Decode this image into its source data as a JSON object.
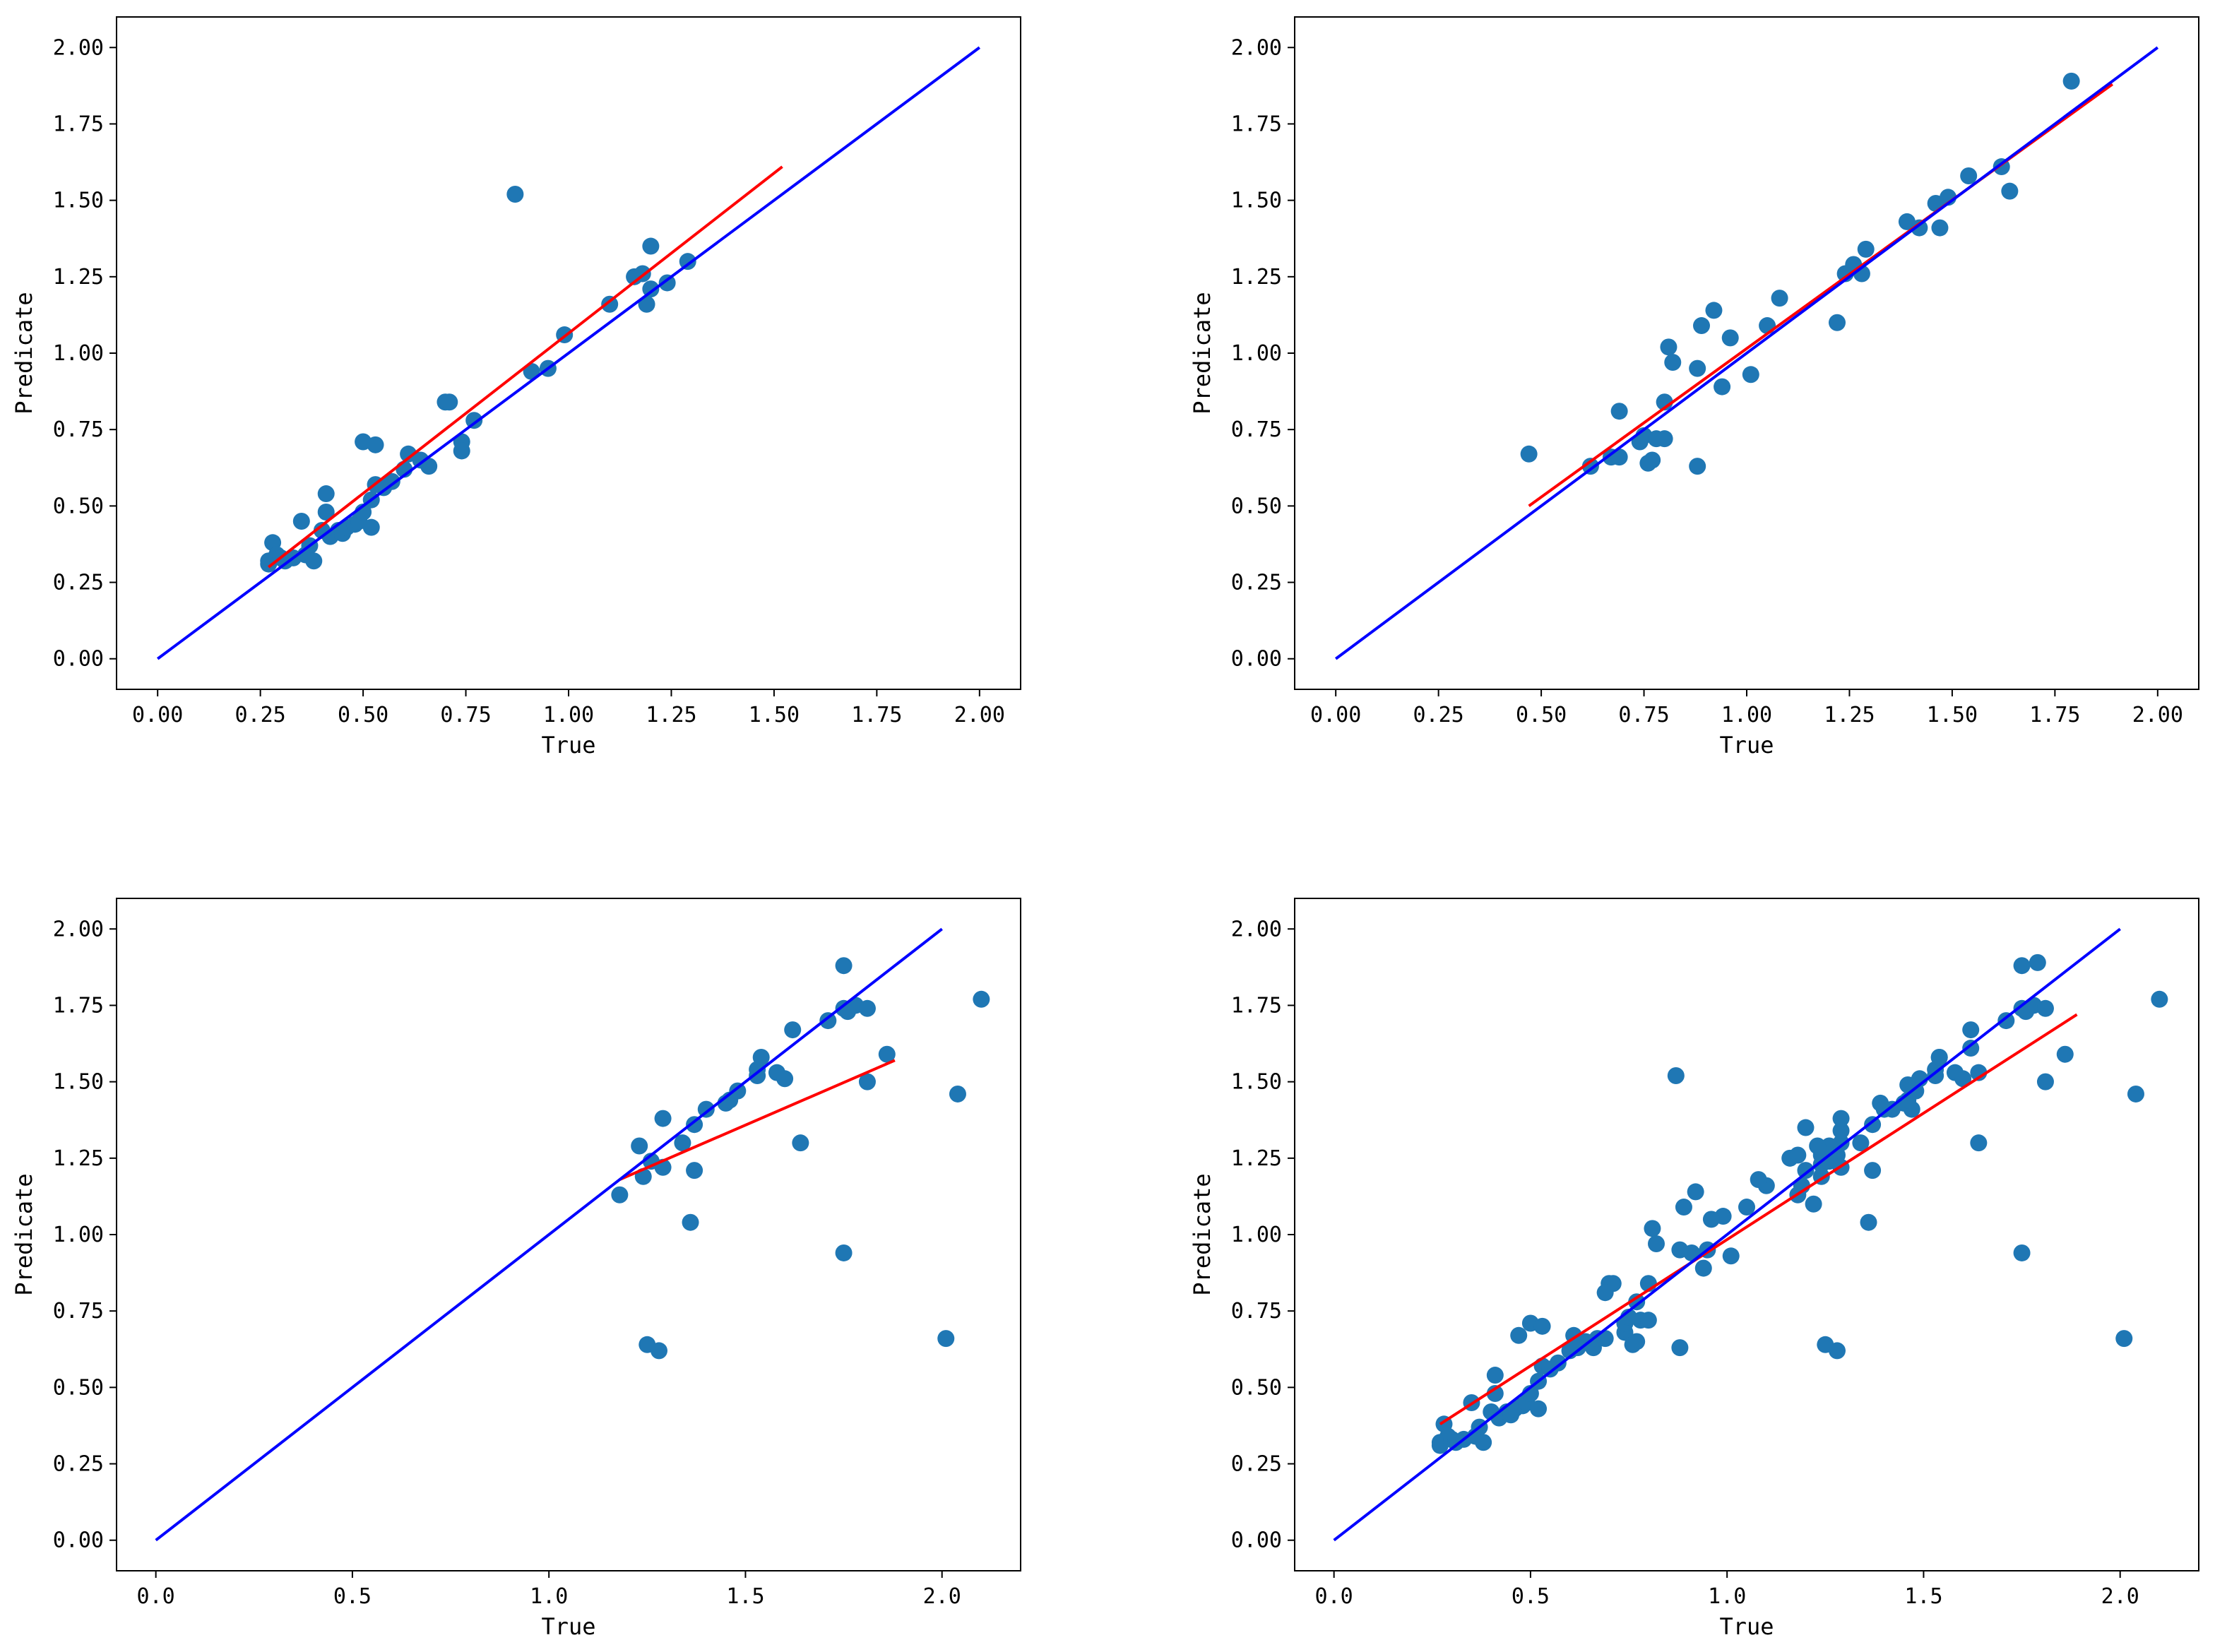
{
  "colors": {
    "points": "#1f77b4",
    "fit_line": "#ff0000",
    "identity_line": "#0000ff",
    "axes": "#000000"
  },
  "chart_data": [
    {
      "type": "scatter",
      "title": "",
      "xlabel": "True",
      "ylabel": "Predicate",
      "xlim": [
        -0.1,
        2.1
      ],
      "ylim": [
        -0.1,
        2.1
      ],
      "xticks": [
        "0.00",
        "0.25",
        "0.50",
        "0.75",
        "1.00",
        "1.25",
        "1.50",
        "1.75",
        "2.00"
      ],
      "yticks": [
        "0.00",
        "0.25",
        "0.50",
        "0.75",
        "1.00",
        "1.25",
        "1.50",
        "1.75",
        "2.00"
      ],
      "identity_line": {
        "x": [
          0,
          2
        ],
        "y": [
          0,
          2
        ]
      },
      "fit_line": {
        "x": [
          0.27,
          1.52
        ],
        "y": [
          0.3,
          1.61
        ]
      },
      "points": [
        [
          0.27,
          0.32
        ],
        [
          0.27,
          0.31
        ],
        [
          0.28,
          0.38
        ],
        [
          0.29,
          0.34
        ],
        [
          0.3,
          0.33
        ],
        [
          0.31,
          0.32
        ],
        [
          0.33,
          0.33
        ],
        [
          0.35,
          0.45
        ],
        [
          0.36,
          0.34
        ],
        [
          0.37,
          0.37
        ],
        [
          0.38,
          0.32
        ],
        [
          0.4,
          0.42
        ],
        [
          0.41,
          0.54
        ],
        [
          0.41,
          0.48
        ],
        [
          0.42,
          0.4
        ],
        [
          0.44,
          0.42
        ],
        [
          0.45,
          0.41
        ],
        [
          0.46,
          0.43
        ],
        [
          0.48,
          0.44
        ],
        [
          0.49,
          0.45
        ],
        [
          0.5,
          0.48
        ],
        [
          0.5,
          0.71
        ],
        [
          0.52,
          0.52
        ],
        [
          0.52,
          0.43
        ],
        [
          0.53,
          0.57
        ],
        [
          0.53,
          0.7
        ],
        [
          0.55,
          0.56
        ],
        [
          0.57,
          0.58
        ],
        [
          0.6,
          0.62
        ],
        [
          0.61,
          0.67
        ],
        [
          0.64,
          0.65
        ],
        [
          0.66,
          0.63
        ],
        [
          0.7,
          0.84
        ],
        [
          0.71,
          0.84
        ],
        [
          0.74,
          0.71
        ],
        [
          0.74,
          0.68
        ],
        [
          0.77,
          0.78
        ],
        [
          0.87,
          1.52
        ],
        [
          0.91,
          0.94
        ],
        [
          0.95,
          0.95
        ],
        [
          0.99,
          1.06
        ],
        [
          1.1,
          1.16
        ],
        [
          1.16,
          1.25
        ],
        [
          1.18,
          1.26
        ],
        [
          1.19,
          1.16
        ],
        [
          1.2,
          1.21
        ],
        [
          1.2,
          1.35
        ],
        [
          1.24,
          1.23
        ],
        [
          1.29,
          1.3
        ]
      ]
    },
    {
      "type": "scatter",
      "title": "",
      "xlabel": "True",
      "ylabel": "Predicate",
      "xlim": [
        -0.1,
        2.1
      ],
      "ylim": [
        -0.1,
        2.1
      ],
      "xticks": [
        "0.00",
        "0.25",
        "0.50",
        "0.75",
        "1.00",
        "1.25",
        "1.50",
        "1.75",
        "2.00"
      ],
      "yticks": [
        "0.00",
        "0.25",
        "0.50",
        "0.75",
        "1.00",
        "1.25",
        "1.50",
        "1.75",
        "2.00"
      ],
      "identity_line": {
        "x": [
          0,
          2
        ],
        "y": [
          0,
          2
        ]
      },
      "fit_line": {
        "x": [
          0.47,
          1.89
        ],
        "y": [
          0.5,
          1.88
        ]
      },
      "points": [
        [
          0.47,
          0.67
        ],
        [
          0.62,
          0.63
        ],
        [
          0.67,
          0.66
        ],
        [
          0.69,
          0.66
        ],
        [
          0.69,
          0.81
        ],
        [
          0.74,
          0.71
        ],
        [
          0.75,
          0.73
        ],
        [
          0.76,
          0.64
        ],
        [
          0.77,
          0.65
        ],
        [
          0.78,
          0.72
        ],
        [
          0.8,
          0.72
        ],
        [
          0.8,
          0.84
        ],
        [
          0.81,
          1.02
        ],
        [
          0.82,
          0.97
        ],
        [
          0.88,
          0.63
        ],
        [
          0.88,
          0.95
        ],
        [
          0.89,
          1.09
        ],
        [
          0.92,
          1.14
        ],
        [
          0.94,
          0.89
        ],
        [
          0.96,
          1.05
        ],
        [
          1.01,
          0.93
        ],
        [
          1.05,
          1.09
        ],
        [
          1.08,
          1.18
        ],
        [
          1.22,
          1.1
        ],
        [
          1.24,
          1.26
        ],
        [
          1.26,
          1.29
        ],
        [
          1.28,
          1.26
        ],
        [
          1.29,
          1.34
        ],
        [
          1.39,
          1.43
        ],
        [
          1.42,
          1.41
        ],
        [
          1.46,
          1.49
        ],
        [
          1.47,
          1.41
        ],
        [
          1.49,
          1.51
        ],
        [
          1.54,
          1.58
        ],
        [
          1.62,
          1.61
        ],
        [
          1.64,
          1.53
        ],
        [
          1.79,
          1.89
        ]
      ]
    },
    {
      "type": "scatter",
      "title": "",
      "xlabel": "True",
      "ylabel": "Predicate",
      "xlim": [
        -0.1,
        2.2
      ],
      "ylim": [
        -0.1,
        2.1
      ],
      "xticks": [
        "0.0",
        "0.5",
        "1.0",
        "1.5",
        "2.0"
      ],
      "yticks": [
        "0.00",
        "0.25",
        "0.50",
        "0.75",
        "1.00",
        "1.25",
        "1.50",
        "1.75",
        "2.00"
      ],
      "identity_line": {
        "x": [
          0,
          2
        ],
        "y": [
          0,
          2
        ]
      },
      "fit_line": {
        "x": [
          1.18,
          1.88
        ],
        "y": [
          1.18,
          1.57
        ]
      },
      "points": [
        [
          1.18,
          1.13
        ],
        [
          1.23,
          1.29
        ],
        [
          1.24,
          1.19
        ],
        [
          1.25,
          0.64
        ],
        [
          1.26,
          1.24
        ],
        [
          1.28,
          0.62
        ],
        [
          1.29,
          1.22
        ],
        [
          1.29,
          1.38
        ],
        [
          1.34,
          1.3
        ],
        [
          1.36,
          1.04
        ],
        [
          1.37,
          1.21
        ],
        [
          1.37,
          1.36
        ],
        [
          1.4,
          1.41
        ],
        [
          1.45,
          1.43
        ],
        [
          1.46,
          1.44
        ],
        [
          1.48,
          1.47
        ],
        [
          1.53,
          1.52
        ],
        [
          1.53,
          1.54
        ],
        [
          1.54,
          1.58
        ],
        [
          1.58,
          1.53
        ],
        [
          1.6,
          1.51
        ],
        [
          1.62,
          1.67
        ],
        [
          1.64,
          1.3
        ],
        [
          1.71,
          1.7
        ],
        [
          1.75,
          0.94
        ],
        [
          1.75,
          1.74
        ],
        [
          1.75,
          1.88
        ],
        [
          1.76,
          1.73
        ],
        [
          1.78,
          1.75
        ],
        [
          1.81,
          1.74
        ],
        [
          1.81,
          1.5
        ],
        [
          1.86,
          1.59
        ],
        [
          2.01,
          0.66
        ],
        [
          2.04,
          1.46
        ],
        [
          2.1,
          1.77
        ]
      ]
    },
    {
      "type": "scatter",
      "title": "",
      "xlabel": "True",
      "ylabel": "Predicate",
      "xlim": [
        -0.1,
        2.2
      ],
      "ylim": [
        -0.1,
        2.1
      ],
      "xticks": [
        "0.0",
        "0.5",
        "1.0",
        "1.5",
        "2.0"
      ],
      "yticks": [
        "0.00",
        "0.25",
        "0.50",
        "0.75",
        "1.00",
        "1.25",
        "1.50",
        "1.75",
        "2.00"
      ],
      "identity_line": {
        "x": [
          0,
          2
        ],
        "y": [
          0,
          2
        ]
      },
      "fit_line": {
        "x": [
          0.27,
          1.89
        ],
        "y": [
          0.38,
          1.72
        ]
      },
      "points": [
        [
          0.27,
          0.32
        ],
        [
          0.27,
          0.31
        ],
        [
          0.28,
          0.38
        ],
        [
          0.29,
          0.34
        ],
        [
          0.3,
          0.33
        ],
        [
          0.31,
          0.32
        ],
        [
          0.33,
          0.33
        ],
        [
          0.35,
          0.45
        ],
        [
          0.36,
          0.34
        ],
        [
          0.37,
          0.37
        ],
        [
          0.38,
          0.32
        ],
        [
          0.4,
          0.42
        ],
        [
          0.41,
          0.54
        ],
        [
          0.41,
          0.48
        ],
        [
          0.42,
          0.4
        ],
        [
          0.44,
          0.42
        ],
        [
          0.45,
          0.41
        ],
        [
          0.46,
          0.43
        ],
        [
          0.48,
          0.44
        ],
        [
          0.49,
          0.45
        ],
        [
          0.5,
          0.48
        ],
        [
          0.5,
          0.71
        ],
        [
          0.52,
          0.52
        ],
        [
          0.52,
          0.43
        ],
        [
          0.53,
          0.57
        ],
        [
          0.53,
          0.7
        ],
        [
          0.55,
          0.56
        ],
        [
          0.57,
          0.58
        ],
        [
          0.6,
          0.62
        ],
        [
          0.61,
          0.67
        ],
        [
          0.64,
          0.65
        ],
        [
          0.66,
          0.63
        ],
        [
          0.7,
          0.84
        ],
        [
          0.71,
          0.84
        ],
        [
          0.74,
          0.71
        ],
        [
          0.74,
          0.68
        ],
        [
          0.77,
          0.78
        ],
        [
          0.87,
          1.52
        ],
        [
          0.91,
          0.94
        ],
        [
          0.95,
          0.95
        ],
        [
          0.99,
          1.06
        ],
        [
          1.1,
          1.16
        ],
        [
          1.16,
          1.25
        ],
        [
          1.18,
          1.26
        ],
        [
          1.19,
          1.16
        ],
        [
          1.2,
          1.21
        ],
        [
          1.2,
          1.35
        ],
        [
          1.24,
          1.23
        ],
        [
          1.29,
          1.3
        ],
        [
          0.47,
          0.67
        ],
        [
          0.62,
          0.63
        ],
        [
          0.67,
          0.66
        ],
        [
          0.69,
          0.66
        ],
        [
          0.69,
          0.81
        ],
        [
          0.74,
          0.71
        ],
        [
          0.75,
          0.73
        ],
        [
          0.76,
          0.64
        ],
        [
          0.77,
          0.65
        ],
        [
          0.78,
          0.72
        ],
        [
          0.8,
          0.72
        ],
        [
          0.8,
          0.84
        ],
        [
          0.81,
          1.02
        ],
        [
          0.82,
          0.97
        ],
        [
          0.88,
          0.63
        ],
        [
          0.88,
          0.95
        ],
        [
          0.89,
          1.09
        ],
        [
          0.92,
          1.14
        ],
        [
          0.94,
          0.89
        ],
        [
          0.96,
          1.05
        ],
        [
          1.01,
          0.93
        ],
        [
          1.05,
          1.09
        ],
        [
          1.08,
          1.18
        ],
        [
          1.22,
          1.1
        ],
        [
          1.24,
          1.26
        ],
        [
          1.26,
          1.29
        ],
        [
          1.28,
          1.26
        ],
        [
          1.29,
          1.34
        ],
        [
          1.39,
          1.43
        ],
        [
          1.42,
          1.41
        ],
        [
          1.46,
          1.49
        ],
        [
          1.47,
          1.41
        ],
        [
          1.49,
          1.51
        ],
        [
          1.54,
          1.58
        ],
        [
          1.62,
          1.61
        ],
        [
          1.64,
          1.53
        ],
        [
          1.79,
          1.89
        ],
        [
          1.18,
          1.13
        ],
        [
          1.23,
          1.29
        ],
        [
          1.24,
          1.19
        ],
        [
          1.25,
          0.64
        ],
        [
          1.26,
          1.24
        ],
        [
          1.28,
          0.62
        ],
        [
          1.29,
          1.22
        ],
        [
          1.29,
          1.38
        ],
        [
          1.34,
          1.3
        ],
        [
          1.36,
          1.04
        ],
        [
          1.37,
          1.21
        ],
        [
          1.37,
          1.36
        ],
        [
          1.4,
          1.41
        ],
        [
          1.45,
          1.43
        ],
        [
          1.46,
          1.44
        ],
        [
          1.48,
          1.47
        ],
        [
          1.53,
          1.52
        ],
        [
          1.53,
          1.54
        ],
        [
          1.54,
          1.58
        ],
        [
          1.58,
          1.53
        ],
        [
          1.6,
          1.51
        ],
        [
          1.62,
          1.67
        ],
        [
          1.64,
          1.3
        ],
        [
          1.71,
          1.7
        ],
        [
          1.75,
          0.94
        ],
        [
          1.75,
          1.74
        ],
        [
          1.75,
          1.88
        ],
        [
          1.76,
          1.73
        ],
        [
          1.78,
          1.75
        ],
        [
          1.81,
          1.74
        ],
        [
          1.81,
          1.5
        ],
        [
          1.86,
          1.59
        ],
        [
          2.01,
          0.66
        ],
        [
          2.04,
          1.46
        ],
        [
          2.1,
          1.77
        ]
      ]
    }
  ]
}
